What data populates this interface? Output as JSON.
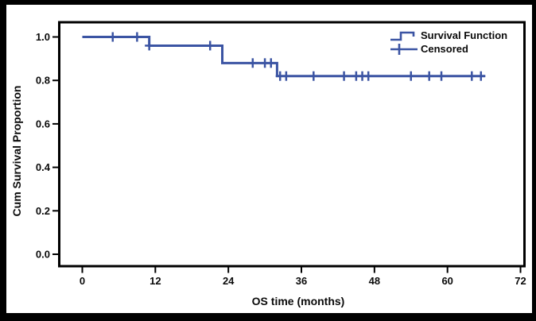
{
  "figure": {
    "background": "#ffffff",
    "border_color": "#000000"
  },
  "axes": {
    "x_title": "OS time (months)",
    "y_title": "Cum Survival Proportion",
    "x_tick_labels": [
      "0",
      "12",
      "24",
      "36",
      "48",
      "60",
      "72"
    ],
    "y_tick_labels": [
      "0.0",
      "0.2",
      "0.4",
      "0.6",
      "0.8",
      "1.0"
    ]
  },
  "legend": {
    "survival_label": "Survival Function",
    "censored_label": "Censored"
  },
  "colors": {
    "series": "#3b54a3",
    "axis": "#000000",
    "text": "#0a0a0a"
  },
  "chart_data": {
    "type": "line",
    "subtype": "kaplan-meier-step-function",
    "title": "",
    "xlabel": "OS time (months)",
    "ylabel": "Cum Survival Proportion",
    "xlim": [
      0,
      72
    ],
    "ylim": [
      0.0,
      1.0
    ],
    "x_ticks": [
      0,
      12,
      24,
      36,
      48,
      60,
      72
    ],
    "y_ticks": [
      0.0,
      0.2,
      0.4,
      0.6,
      0.8,
      1.0
    ],
    "grid": false,
    "legend_position": "top-right",
    "series": [
      {
        "name": "Survival Function",
        "color": "#3b54a3",
        "steps": [
          {
            "time": 0,
            "survival": 1.0
          },
          {
            "time": 11,
            "survival": 0.96
          },
          {
            "time": 23,
            "survival": 0.88
          },
          {
            "time": 32,
            "survival": 0.82
          }
        ],
        "end_time": 66.2
      }
    ],
    "censored": [
      {
        "time": 5,
        "survival": 1.0
      },
      {
        "time": 9,
        "survival": 1.0
      },
      {
        "time": 11,
        "survival": 0.96
      },
      {
        "time": 21,
        "survival": 0.96
      },
      {
        "time": 28,
        "survival": 0.88
      },
      {
        "time": 30,
        "survival": 0.88
      },
      {
        "time": 31,
        "survival": 0.88
      },
      {
        "time": 32.5,
        "survival": 0.82
      },
      {
        "time": 33.5,
        "survival": 0.82
      },
      {
        "time": 38,
        "survival": 0.82
      },
      {
        "time": 43,
        "survival": 0.82
      },
      {
        "time": 45,
        "survival": 0.82
      },
      {
        "time": 46,
        "survival": 0.82
      },
      {
        "time": 47,
        "survival": 0.82
      },
      {
        "time": 54,
        "survival": 0.82
      },
      {
        "time": 57,
        "survival": 0.82
      },
      {
        "time": 59,
        "survival": 0.82
      },
      {
        "time": 64,
        "survival": 0.82
      },
      {
        "time": 65.5,
        "survival": 0.82
      }
    ]
  }
}
